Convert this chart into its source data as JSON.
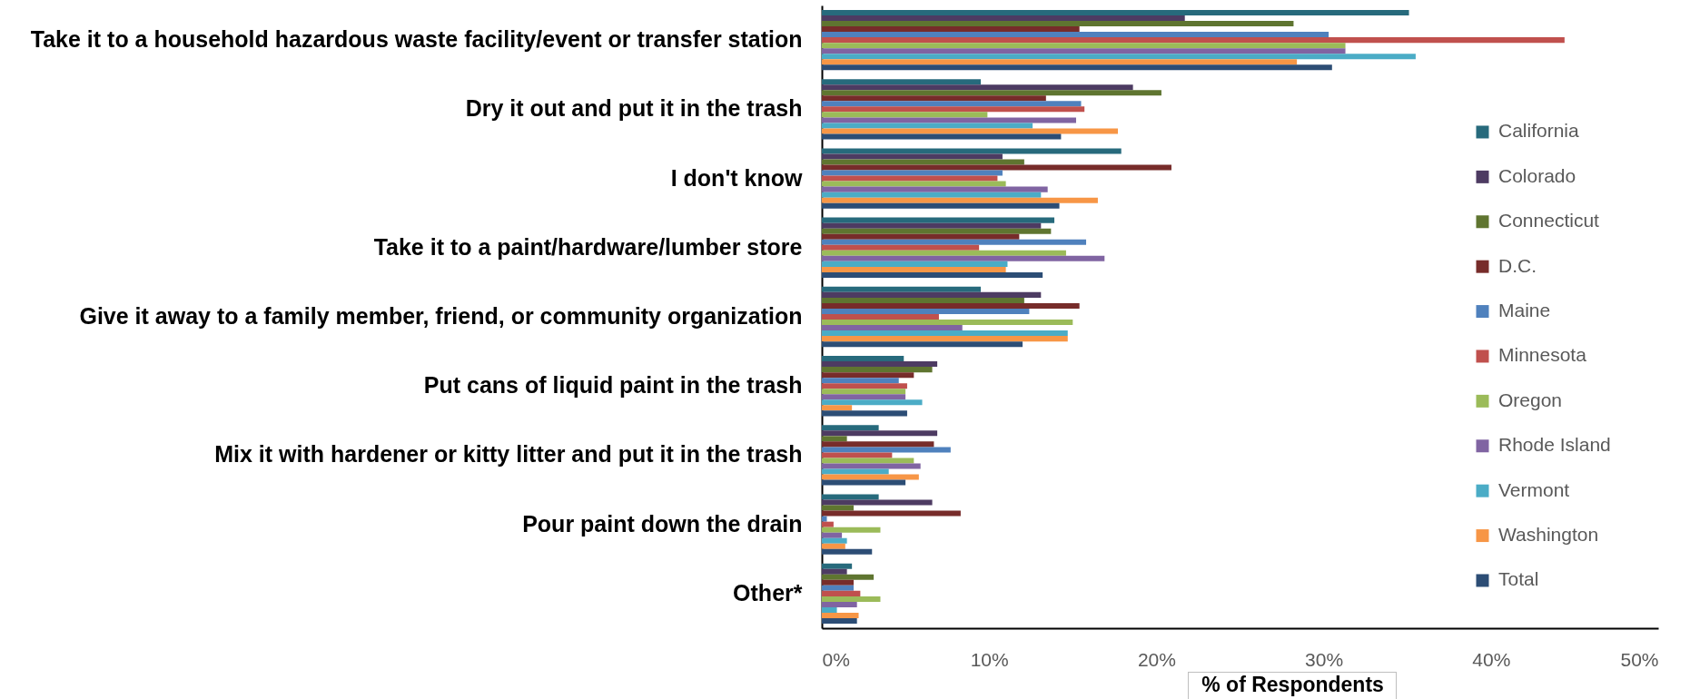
{
  "chart_data": {
    "type": "bar",
    "orientation": "horizontal",
    "xlabel": "% of Respondents",
    "categories": [
      "Take it to a household hazardous waste facility/event or transfer station",
      "Dry it out and put it in the trash",
      "I don't know",
      "Take it to a paint/hardware/lumber store",
      "Give it away to a family member, friend, or community organization",
      "Put cans of liquid paint in the trash",
      "Mix it with hardener or kitty litter and put it in the trash",
      "Pour paint down the drain",
      "Other*"
    ],
    "series": [
      {
        "name": "California",
        "color": "#276a7c",
        "values": [
          35.1,
          9.5,
          17.9,
          13.9,
          9.5,
          4.9,
          3.4,
          3.4,
          1.8
        ]
      },
      {
        "name": "Colorado",
        "color": "#4d3b62",
        "values": [
          21.7,
          18.6,
          10.8,
          13.1,
          13.1,
          6.9,
          6.9,
          6.6,
          1.5
        ]
      },
      {
        "name": "Connecticut",
        "color": "#5f7530",
        "values": [
          28.2,
          20.3,
          12.1,
          13.7,
          12.1,
          6.6,
          1.5,
          1.9,
          3.1
        ]
      },
      {
        "name": "D.C.",
        "color": "#772c2a",
        "values": [
          15.4,
          13.4,
          20.9,
          11.8,
          15.4,
          5.5,
          6.7,
          8.3,
          1.9
        ]
      },
      {
        "name": "Maine",
        "color": "#4f81bd",
        "values": [
          30.3,
          15.5,
          10.8,
          15.8,
          12.4,
          4.6,
          7.7,
          0.3,
          1.9
        ]
      },
      {
        "name": "Minnesota",
        "color": "#c0504d",
        "values": [
          44.4,
          15.7,
          10.5,
          9.4,
          7.0,
          5.1,
          4.2,
          0.7,
          2.3
        ]
      },
      {
        "name": "Oregon",
        "color": "#9bbb59",
        "values": [
          31.3,
          9.9,
          11.0,
          14.6,
          15.0,
          5.0,
          5.5,
          3.5,
          3.5
        ]
      },
      {
        "name": "Rhode Island",
        "color": "#8064a2",
        "values": [
          31.3,
          15.2,
          13.5,
          16.9,
          8.4,
          5.0,
          5.9,
          1.2,
          2.1
        ]
      },
      {
        "name": "Vermont",
        "color": "#4bacc6",
        "values": [
          35.5,
          12.6,
          13.1,
          11.1,
          14.7,
          6.0,
          4.0,
          1.5,
          0.9
        ]
      },
      {
        "name": "Washington",
        "color": "#f79646",
        "values": [
          28.4,
          17.7,
          16.5,
          11.0,
          14.7,
          1.8,
          5.8,
          1.4,
          2.2
        ]
      },
      {
        "name": "Total",
        "color": "#2c4d75",
        "values": [
          30.5,
          14.3,
          14.2,
          13.2,
          12.0,
          5.1,
          5.0,
          3.0,
          2.1
        ]
      }
    ],
    "xlim": [
      0,
      50
    ],
    "xticks": [
      {
        "value": 0,
        "label": "0%"
      },
      {
        "value": 10,
        "label": "10%"
      },
      {
        "value": 20,
        "label": "20%"
      },
      {
        "value": 30,
        "label": "30%"
      },
      {
        "value": 40,
        "label": "40%"
      },
      {
        "value": 50,
        "label": "50%"
      }
    ],
    "grid": false,
    "legend": "right"
  }
}
